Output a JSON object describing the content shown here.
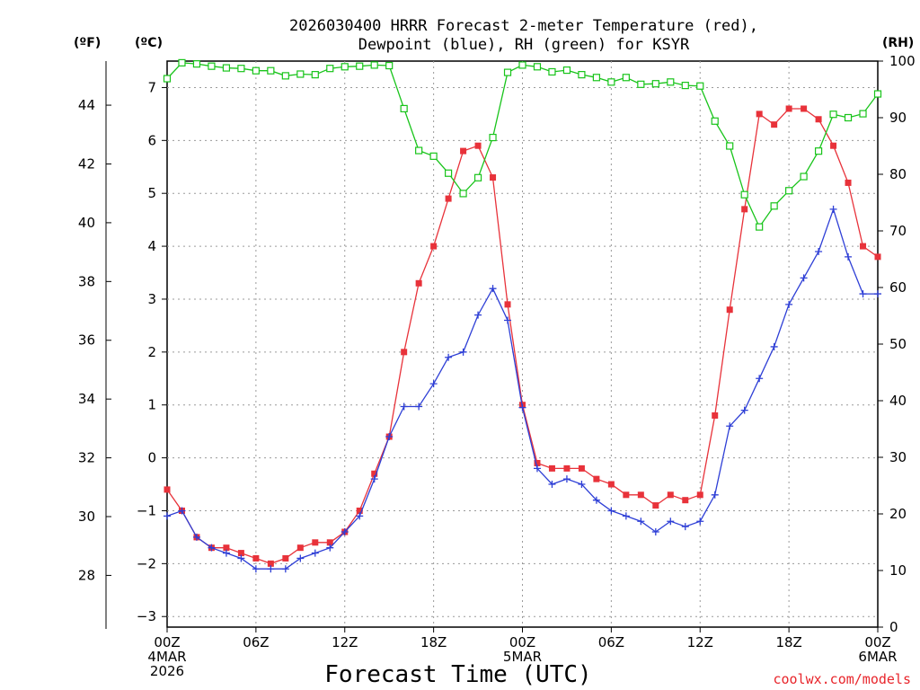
{
  "chart_data": {
    "type": "line",
    "title_line1": "2026030400 HRRR Forecast 2-meter Temperature (red),",
    "title_line2": "Dewpoint (blue), RH (green) for KSYR",
    "xlabel": "Forecast Time (UTC)",
    "credit": "coolwx.com/models",
    "units": {
      "f": "(ºF)",
      "c": "(ºC)",
      "rh": "(RH)"
    },
    "x_hours": {
      "min": 0,
      "max": 48
    },
    "x_ticks": [
      {
        "h": 0,
        "lines": [
          "00Z",
          "4MAR",
          "2026"
        ]
      },
      {
        "h": 6,
        "lines": [
          "06Z"
        ]
      },
      {
        "h": 12,
        "lines": [
          "12Z"
        ]
      },
      {
        "h": 18,
        "lines": [
          "18Z"
        ]
      },
      {
        "h": 24,
        "lines": [
          "00Z",
          "5MAR"
        ]
      },
      {
        "h": 30,
        "lines": [
          "06Z"
        ]
      },
      {
        "h": 36,
        "lines": [
          "12Z"
        ]
      },
      {
        "h": 42,
        "lines": [
          "18Z"
        ]
      },
      {
        "h": 48,
        "lines": [
          "00Z",
          "6MAR"
        ]
      }
    ],
    "y_celsius": {
      "min": -3.2,
      "max": 7.5,
      "ticks": [
        -3,
        -2,
        -1,
        0,
        1,
        2,
        3,
        4,
        5,
        6,
        7
      ]
    },
    "y_fahrenheit_ticks": [
      28,
      30,
      32,
      34,
      36,
      38,
      40,
      42,
      44
    ],
    "y_rh": {
      "min": 0,
      "max": 100,
      "ticks": [
        0,
        10,
        20,
        30,
        40,
        50,
        60,
        70,
        80,
        90,
        100
      ]
    },
    "grid": true,
    "colors": {
      "temperature": "#e8323a",
      "dewpoint": "#2e3fd6",
      "rh": "#18c41a"
    },
    "series": [
      {
        "name": "Temperature",
        "unit": "C",
        "marker": "filled-square",
        "values": [
          -0.6,
          -1.0,
          -1.5,
          -1.7,
          -1.7,
          -1.8,
          -1.9,
          -2.0,
          -1.9,
          -1.7,
          -1.6,
          -1.6,
          -1.4,
          -1.0,
          -0.3,
          0.4,
          2.0,
          3.3,
          4.0,
          4.9,
          5.8,
          5.9,
          5.3,
          2.9,
          1.0,
          -0.1,
          -0.2,
          -0.2,
          -0.2,
          -0.4,
          -0.5,
          -0.7,
          -0.7,
          -0.9,
          -0.7,
          -0.8,
          -0.7,
          0.8,
          2.8,
          4.7,
          6.5,
          6.3,
          6.6,
          6.6,
          6.4,
          5.9,
          5.2,
          4.0,
          3.8
        ]
      },
      {
        "name": "Dewpoint",
        "unit": "C",
        "marker": "plus",
        "values": [
          -1.1,
          -1.0,
          -1.5,
          -1.7,
          -1.8,
          -1.9,
          -2.1,
          -2.1,
          -2.1,
          -1.9,
          -1.8,
          -1.7,
          -1.4,
          -1.1,
          -0.4,
          0.4,
          0.97,
          0.97,
          1.4,
          1.9,
          2.0,
          2.7,
          3.2,
          2.6,
          0.95,
          -0.2,
          -0.5,
          -0.4,
          -0.5,
          -0.8,
          -1.0,
          -1.1,
          -1.2,
          -1.4,
          -1.2,
          -1.3,
          -1.2,
          -0.7,
          0.6,
          0.9,
          1.5,
          2.1,
          2.9,
          3.4,
          3.9,
          4.7,
          3.8,
          3.1,
          3.1
        ]
      },
      {
        "name": "RH",
        "unit": "%",
        "marker": "open-square",
        "values": [
          96.9,
          99.7,
          99.5,
          99.1,
          98.8,
          98.7,
          98.3,
          98.3,
          97.4,
          97.7,
          97.6,
          98.7,
          99.0,
          99.1,
          99.3,
          99.2,
          91.6,
          84.2,
          83.2,
          80.2,
          76.6,
          79.4,
          86.5,
          98.0,
          99.3,
          99.0,
          98.1,
          98.4,
          97.6,
          97.1,
          96.3,
          97.1,
          95.9,
          96.0,
          96.3,
          95.7,
          95.6,
          89.4,
          85.0,
          76.4,
          70.7,
          74.4,
          77.1,
          79.6,
          84.1,
          90.6,
          90.0,
          90.7,
          94.2
        ]
      }
    ]
  }
}
